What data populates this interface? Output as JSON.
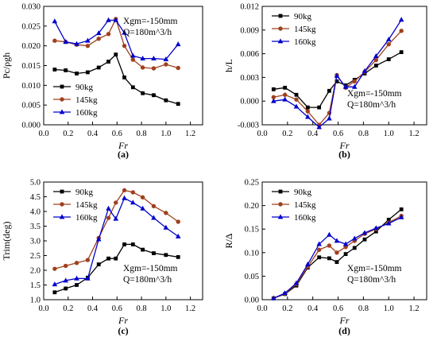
{
  "chart_data": [
    {
      "id": "a",
      "type": "line",
      "panel_label": "(a)",
      "xlabel": "Fr",
      "ylabel": "Pc/ρgh",
      "xlim": [
        0.0,
        1.3
      ],
      "ylim": [
        0.0,
        0.03
      ],
      "xticks": [
        "0.0",
        "0.2",
        "0.4",
        "0.6",
        "0.8",
        "1.0",
        "1.2"
      ],
      "yticks": [
        "0.000",
        "0.005",
        "0.010",
        "0.015",
        "0.020",
        "0.025",
        "0.030"
      ],
      "legend_position": "bottom-left",
      "annotations": [
        "Xgm=-150mm",
        "Q=180m^3/h"
      ],
      "annotation_position": "top-right",
      "series": [
        {
          "name": "90kg",
          "color": "#000000",
          "marker": "square",
          "x": [
            0.09,
            0.18,
            0.27,
            0.36,
            0.45,
            0.53,
            0.59,
            0.66,
            0.73,
            0.81,
            0.9,
            1.0,
            1.1
          ],
          "y": [
            0.014,
            0.0138,
            0.013,
            0.0133,
            0.0145,
            0.016,
            0.0178,
            0.012,
            0.0095,
            0.008,
            0.0075,
            0.0062,
            0.0053
          ]
        },
        {
          "name": "145kg",
          "color": "#a0401d",
          "marker": "circle",
          "x": [
            0.09,
            0.18,
            0.27,
            0.36,
            0.45,
            0.53,
            0.59,
            0.66,
            0.73,
            0.81,
            0.9,
            1.0,
            1.1
          ],
          "y": [
            0.0213,
            0.021,
            0.0203,
            0.02,
            0.0218,
            0.023,
            0.0268,
            0.02,
            0.0165,
            0.0145,
            0.0143,
            0.0153,
            0.0144
          ]
        },
        {
          "name": "160kg",
          "color": "#0000cc",
          "marker": "triangle",
          "x": [
            0.09,
            0.18,
            0.27,
            0.36,
            0.45,
            0.53,
            0.59,
            0.66,
            0.73,
            0.81,
            0.9,
            1.0,
            1.1
          ],
          "y": [
            0.0262,
            0.021,
            0.0205,
            0.0213,
            0.0232,
            0.0265,
            0.0265,
            0.0233,
            0.0175,
            0.0168,
            0.0168,
            0.0166,
            0.0204
          ]
        }
      ]
    },
    {
      "id": "b",
      "type": "line",
      "panel_label": "(b)",
      "xlabel": "Fr",
      "ylabel": "h/L",
      "xlim": [
        0.0,
        1.3
      ],
      "ylim": [
        -0.003,
        0.012
      ],
      "xticks": [
        "0.0",
        "0.2",
        "0.4",
        "0.6",
        "0.8",
        "1.0",
        "1.2"
      ],
      "yticks": [
        "-0.003",
        "0.000",
        "0.003",
        "0.006",
        "0.009",
        "0.012"
      ],
      "legend_position": "top-left",
      "annotations": [
        "Xgm=-150mm",
        "Q=180m^3/h"
      ],
      "annotation_position": "bottom-right",
      "series": [
        {
          "name": "90kg",
          "color": "#000000",
          "marker": "square",
          "x": [
            0.09,
            0.18,
            0.27,
            0.36,
            0.45,
            0.53,
            0.59,
            0.66,
            0.73,
            0.81,
            0.9,
            1.0,
            1.1
          ],
          "y": [
            0.0015,
            0.0017,
            0.0008,
            -0.0008,
            -0.0008,
            0.0013,
            0.0025,
            0.002,
            0.0027,
            0.0035,
            0.0045,
            0.0053,
            0.0062
          ]
        },
        {
          "name": "145kg",
          "color": "#a0401d",
          "marker": "circle",
          "x": [
            0.09,
            0.18,
            0.27,
            0.36,
            0.45,
            0.53,
            0.59,
            0.66,
            0.73,
            0.81,
            0.9,
            1.0,
            1.1
          ],
          "y": [
            0.0005,
            0.0008,
            0.0002,
            -0.0013,
            -0.003,
            -0.0015,
            0.0033,
            0.0017,
            0.0025,
            0.0037,
            0.0052,
            0.0072,
            0.0089
          ]
        },
        {
          "name": "160kg",
          "color": "#0000cc",
          "marker": "triangle",
          "x": [
            0.09,
            0.18,
            0.27,
            0.36,
            0.45,
            0.53,
            0.59,
            0.66,
            0.73,
            0.81,
            0.9,
            1.0,
            1.1
          ],
          "y": [
            0.0,
            0.0002,
            -0.0007,
            -0.002,
            -0.0033,
            -0.0022,
            0.0032,
            0.0018,
            0.0018,
            0.0038,
            0.0057,
            0.0078,
            0.0103
          ]
        }
      ]
    },
    {
      "id": "c",
      "type": "line",
      "panel_label": "(c)",
      "xlabel": "Fr",
      "ylabel": "Trim(deg)",
      "xlim": [
        0.0,
        1.3
      ],
      "ylim": [
        1.0,
        5.0
      ],
      "xticks": [
        "0.0",
        "0.2",
        "0.4",
        "0.6",
        "0.8",
        "1.0",
        "1.2"
      ],
      "yticks": [
        "1.0",
        "1.5",
        "2.0",
        "2.5",
        "3.0",
        "3.5",
        "4.0",
        "4.5",
        "5.0"
      ],
      "legend_position": "top-left",
      "annotations": [
        "Xgm=-150mm",
        "Q=180m^3/h"
      ],
      "annotation_position": "bottom-right",
      "series": [
        {
          "name": "90kg",
          "color": "#000000",
          "marker": "square",
          "x": [
            0.09,
            0.18,
            0.27,
            0.36,
            0.45,
            0.53,
            0.59,
            0.66,
            0.73,
            0.81,
            0.9,
            1.0,
            1.1
          ],
          "y": [
            1.25,
            1.38,
            1.5,
            1.75,
            2.2,
            2.4,
            2.4,
            2.88,
            2.88,
            2.7,
            2.58,
            2.52,
            2.45
          ]
        },
        {
          "name": "145kg",
          "color": "#a0401d",
          "marker": "circle",
          "x": [
            0.09,
            0.18,
            0.27,
            0.36,
            0.45,
            0.53,
            0.59,
            0.66,
            0.73,
            0.81,
            0.9,
            1.0,
            1.1
          ],
          "y": [
            2.05,
            2.15,
            2.25,
            2.35,
            3.1,
            3.78,
            4.3,
            4.72,
            4.65,
            4.48,
            4.18,
            3.95,
            3.65
          ]
        },
        {
          "name": "160kg",
          "color": "#0000cc",
          "marker": "triangle",
          "x": [
            0.09,
            0.18,
            0.27,
            0.36,
            0.45,
            0.53,
            0.59,
            0.66,
            0.73,
            0.81,
            0.9,
            1.0,
            1.1
          ],
          "y": [
            1.52,
            1.65,
            1.72,
            1.72,
            3.05,
            4.1,
            3.75,
            4.45,
            4.3,
            4.1,
            3.78,
            3.45,
            3.15
          ]
        }
      ]
    },
    {
      "id": "d",
      "type": "line",
      "panel_label": "(d)",
      "xlabel": "Fr",
      "ylabel": "R/Δ",
      "xlim": [
        0.0,
        1.3
      ],
      "ylim": [
        0.0,
        0.25
      ],
      "xticks": [
        "0.0",
        "0.2",
        "0.4",
        "0.6",
        "0.8",
        "1.0",
        "1.2"
      ],
      "yticks": [
        "0.00",
        "0.05",
        "0.10",
        "0.15",
        "0.20",
        "0.25"
      ],
      "legend_position": "top-left",
      "annotations": [
        "Xgm=-150mm",
        "Q=180m^3/h"
      ],
      "annotation_position": "bottom-right",
      "series": [
        {
          "name": "90kg",
          "color": "#000000",
          "marker": "square",
          "x": [
            0.09,
            0.18,
            0.27,
            0.36,
            0.45,
            0.53,
            0.59,
            0.66,
            0.73,
            0.81,
            0.9,
            1.0,
            1.1
          ],
          "y": [
            0.003,
            0.012,
            0.03,
            0.068,
            0.09,
            0.088,
            0.08,
            0.097,
            0.11,
            0.128,
            0.145,
            0.17,
            0.192
          ]
        },
        {
          "name": "145kg",
          "color": "#a0401d",
          "marker": "circle",
          "x": [
            0.09,
            0.18,
            0.27,
            0.36,
            0.45,
            0.53,
            0.59,
            0.66,
            0.73,
            0.81,
            0.9,
            1.0,
            1.1
          ],
          "y": [
            0.003,
            0.013,
            0.033,
            0.07,
            0.106,
            0.115,
            0.1,
            0.112,
            0.125,
            0.14,
            0.15,
            0.164,
            0.178
          ]
        },
        {
          "name": "160kg",
          "color": "#0000cc",
          "marker": "triangle",
          "x": [
            0.09,
            0.18,
            0.27,
            0.36,
            0.45,
            0.53,
            0.59,
            0.66,
            0.73,
            0.81,
            0.9,
            1.0,
            1.1
          ],
          "y": [
            0.003,
            0.014,
            0.035,
            0.075,
            0.118,
            0.138,
            0.125,
            0.118,
            0.13,
            0.142,
            0.152,
            0.162,
            0.175
          ]
        }
      ]
    }
  ]
}
